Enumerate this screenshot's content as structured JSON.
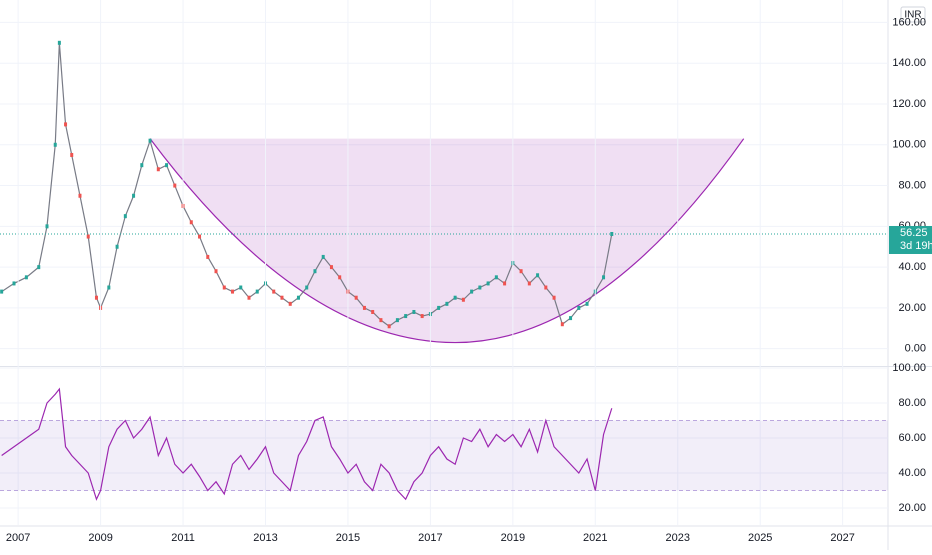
{
  "chart_data": [
    {
      "type": "line",
      "currency": "INR",
      "color": "#787b86",
      "up_color": "#26a69a",
      "down_color": "#ef5350",
      "x": [
        2006.6,
        2006.9,
        2007.2,
        2007.5,
        2007.7,
        2007.9,
        2008.0,
        2008.15,
        2008.3,
        2008.5,
        2008.7,
        2008.9,
        2009.0,
        2009.2,
        2009.4,
        2009.6,
        2009.8,
        2010.0,
        2010.2,
        2010.4,
        2010.6,
        2010.8,
        2011.0,
        2011.2,
        2011.4,
        2011.6,
        2011.8,
        2012.0,
        2012.2,
        2012.4,
        2012.6,
        2012.8,
        2013.0,
        2013.2,
        2013.4,
        2013.6,
        2013.8,
        2014.0,
        2014.2,
        2014.4,
        2014.6,
        2014.8,
        2015.0,
        2015.2,
        2015.4,
        2015.6,
        2015.8,
        2016.0,
        2016.2,
        2016.4,
        2016.6,
        2016.8,
        2017.0,
        2017.2,
        2017.4,
        2017.6,
        2017.8,
        2018.0,
        2018.2,
        2018.4,
        2018.6,
        2018.8,
        2019.0,
        2019.2,
        2019.4,
        2019.6,
        2019.8,
        2020.0,
        2020.2,
        2020.4,
        2020.6,
        2020.8,
        2021.0,
        2021.2,
        2021.4
      ],
      "values": [
        28,
        32,
        35,
        40,
        60,
        100,
        150,
        110,
        95,
        75,
        55,
        25,
        20,
        30,
        50,
        65,
        75,
        90,
        102,
        88,
        90,
        80,
        70,
        62,
        55,
        45,
        38,
        30,
        28,
        30,
        25,
        28,
        32,
        28,
        25,
        22,
        25,
        30,
        38,
        45,
        40,
        35,
        28,
        25,
        20,
        18,
        14,
        11,
        14,
        16,
        18,
        16,
        17,
        20,
        22,
        25,
        24,
        28,
        30,
        32,
        35,
        32,
        42,
        38,
        32,
        36,
        30,
        25,
        12,
        15,
        20,
        22,
        28,
        35,
        56.25
      ],
      "countdown": "3d 19h",
      "cup": {
        "color": "#9c27b0",
        "x_start": 2010.2,
        "x_bottom": 2017.6,
        "x_end": 2024.6,
        "top": 103,
        "bottom": 3
      },
      "xlim": [
        2006.56,
        2028.1
      ],
      "ylim": [
        -8,
        171
      ],
      "yticks": [
        {
          "value": 0,
          "label": "0.00"
        },
        {
          "value": 20,
          "label": "20.00"
        },
        {
          "value": 40,
          "label": "40.00"
        },
        {
          "value": 60,
          "label": "60.00"
        },
        {
          "value": 80,
          "label": "80.00"
        },
        {
          "value": 100,
          "label": "100.00"
        },
        {
          "value": 120,
          "label": "120.00"
        },
        {
          "value": 140,
          "label": "140.00"
        },
        {
          "value": 160,
          "label": "160.00"
        }
      ]
    },
    {
      "type": "line",
      "color": "#9c27b0",
      "x": [
        2006.6,
        2006.9,
        2007.2,
        2007.5,
        2007.7,
        2007.9,
        2008.0,
        2008.15,
        2008.3,
        2008.5,
        2008.7,
        2008.9,
        2009.0,
        2009.2,
        2009.4,
        2009.6,
        2009.8,
        2010.0,
        2010.2,
        2010.4,
        2010.6,
        2010.8,
        2011.0,
        2011.2,
        2011.4,
        2011.6,
        2011.8,
        2012.0,
        2012.2,
        2012.4,
        2012.6,
        2012.8,
        2013.0,
        2013.2,
        2013.4,
        2013.6,
        2013.8,
        2014.0,
        2014.2,
        2014.4,
        2014.6,
        2014.8,
        2015.0,
        2015.2,
        2015.4,
        2015.6,
        2015.8,
        2016.0,
        2016.2,
        2016.4,
        2016.6,
        2016.8,
        2017.0,
        2017.2,
        2017.4,
        2017.6,
        2017.8,
        2018.0,
        2018.2,
        2018.4,
        2018.6,
        2018.8,
        2019.0,
        2019.2,
        2019.4,
        2019.6,
        2019.8,
        2020.0,
        2020.2,
        2020.4,
        2020.6,
        2020.8,
        2021.0,
        2021.2,
        2021.4
      ],
      "values": [
        50,
        55,
        60,
        65,
        80,
        85,
        88,
        55,
        50,
        45,
        40,
        25,
        30,
        55,
        65,
        70,
        60,
        65,
        72,
        50,
        60,
        45,
        40,
        45,
        38,
        30,
        35,
        28,
        45,
        50,
        42,
        48,
        55,
        40,
        35,
        30,
        50,
        58,
        70,
        72,
        55,
        48,
        40,
        45,
        35,
        30,
        45,
        40,
        30,
        25,
        35,
        40,
        50,
        55,
        48,
        45,
        60,
        58,
        65,
        55,
        62,
        58,
        62,
        55,
        65,
        52,
        70,
        55,
        50,
        45,
        40,
        48,
        30,
        62,
        77
      ],
      "band": [
        30,
        70
      ],
      "band_color": "#7e57c2",
      "xlim": [
        2006.56,
        2028.1
      ],
      "ylim": [
        10,
        100
      ],
      "xticks": [
        2007,
        2009,
        2011,
        2013,
        2015,
        2017,
        2019,
        2021,
        2023,
        2025,
        2027
      ],
      "yticks": [
        {
          "value": 20,
          "label": "20.00"
        },
        {
          "value": 40,
          "label": "40.00"
        },
        {
          "value": 60,
          "label": "60.00"
        },
        {
          "value": 80,
          "label": "80.00"
        },
        {
          "value": 100,
          "label": "100.00"
        }
      ]
    }
  ]
}
